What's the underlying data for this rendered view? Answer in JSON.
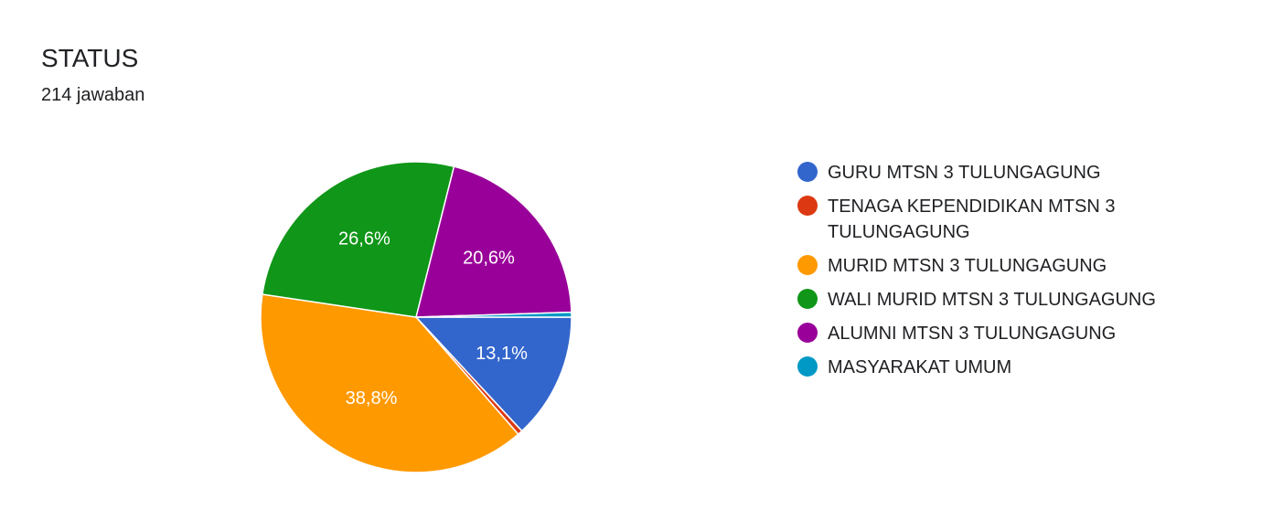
{
  "chart_data": {
    "type": "pie",
    "title": "STATUS",
    "subtitle": "214 jawaban",
    "categories": [
      "GURU MTSN 3 TULUNGAGUNG",
      "TENAGA KEPENDIDIKAN MTSN 3 TULUNGAGUNG",
      "MURID MTSN 3 TULUNGAGUNG",
      "WALI MURID MTSN 3 TULUNGAGUNG",
      "ALUMNI MTSN 3 TULUNGAGUNG",
      "MASYARAKAT UMUM"
    ],
    "values": [
      13.1,
      0.5,
      38.8,
      26.6,
      20.6,
      0.5
    ],
    "value_labels": [
      "13,1%",
      null,
      "38,8%",
      "26,6%",
      "20,6%",
      null
    ],
    "colors": [
      "#3366cc",
      "#dc3912",
      "#ff9900",
      "#109618",
      "#990099",
      "#0099c6"
    ]
  }
}
